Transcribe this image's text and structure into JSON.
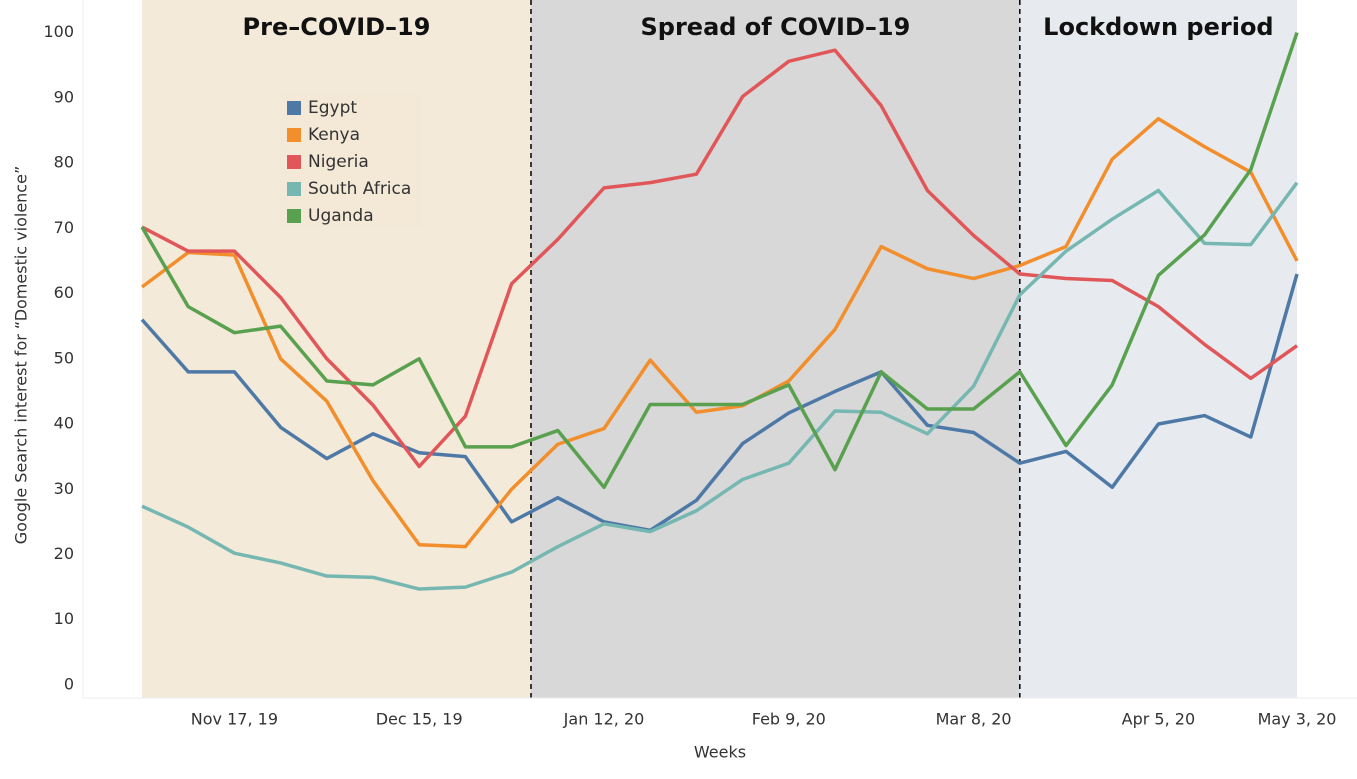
{
  "chart_data": {
    "type": "line",
    "x_label": "Weeks",
    "y_label": "Google Search interest for “Domestic violence”",
    "categories": [
      null,
      null,
      "Nov 17, 19",
      null,
      null,
      null,
      "Dec 15, 19",
      null,
      null,
      null,
      "Jan 12, 20",
      null,
      null,
      null,
      "Feb 9, 20",
      null,
      null,
      null,
      "Mar 8, 20",
      null,
      null,
      null,
      "Apr 5, 20",
      null,
      null,
      "May 3, 20"
    ],
    "ylim": [
      -2,
      105
    ],
    "yticks": [
      0,
      10,
      20,
      30,
      40,
      50,
      60,
      70,
      80,
      90,
      100
    ],
    "regions": [
      {
        "label": "Pre–COVID–19",
        "start": 0,
        "end": 8.42,
        "color": "#f3ead9"
      },
      {
        "label": "Spread of COVID–19",
        "start": 8.42,
        "end": 19,
        "color": "#d8d8d8"
      },
      {
        "label": "Lockdown period",
        "start": 19,
        "end": 25,
        "color": "#e7ebf0"
      }
    ],
    "series": [
      {
        "name": "Egypt",
        "color": "#4e79a7",
        "values": [
          56,
          48,
          48,
          39.5,
          34.7,
          38.5,
          35.6,
          35,
          25,
          28.7,
          25,
          23.7,
          28.3,
          37,
          41.7,
          45,
          48,
          39.8,
          38.7,
          34,
          35.8,
          30.3,
          40,
          41.3,
          38,
          63
        ]
      },
      {
        "name": "Kenya",
        "color": "#f28e2b",
        "values": [
          61,
          66.3,
          65.9,
          50,
          43.5,
          31.3,
          21.5,
          21.2,
          30,
          36.9,
          39.3,
          49.8,
          41.8,
          42.8,
          46.6,
          54.5,
          67.2,
          63.8,
          62.3,
          64.3,
          67.2,
          80.6,
          86.8,
          82.5,
          78.6,
          65
        ]
      },
      {
        "name": "Nigeria",
        "color": "#e15759",
        "values": [
          70.2,
          66.5,
          66.5,
          59.4,
          50,
          42.9,
          33.5,
          41.2,
          61.5,
          68.3,
          76.2,
          77,
          78.3,
          90.2,
          95.6,
          97.3,
          88.8,
          75.8,
          68.9,
          63,
          62.3,
          62,
          58,
          52.2,
          47,
          52
        ]
      },
      {
        "name": "South Africa",
        "color": "#76b7b2",
        "values": [
          27.4,
          24.2,
          20.2,
          18.7,
          16.7,
          16.5,
          14.7,
          15,
          17.3,
          21.2,
          24.7,
          23.5,
          26.7,
          31.5,
          34,
          42,
          41.8,
          38.5,
          45.8,
          59.8,
          66.5,
          71.4,
          75.8,
          67.7,
          67.5,
          77
        ]
      },
      {
        "name": "Uganda",
        "color": "#59a14f",
        "values": [
          70.2,
          58,
          54,
          55,
          46.6,
          46,
          50,
          36.5,
          36.5,
          39,
          30.3,
          43,
          43,
          43,
          46,
          33,
          48,
          42.3,
          42.3,
          48,
          36.7,
          46,
          62.8,
          69,
          79,
          100
        ]
      }
    ]
  }
}
